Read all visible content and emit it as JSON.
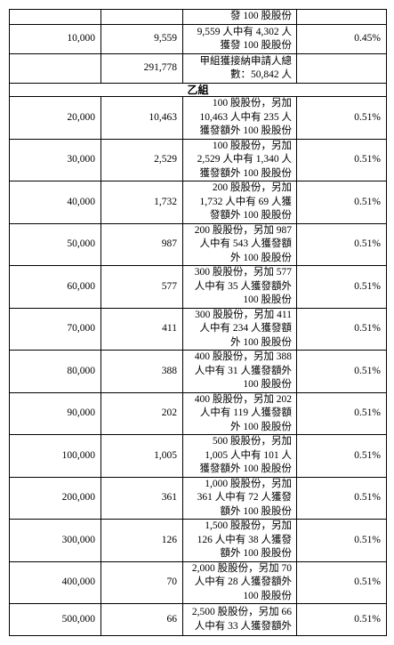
{
  "table": {
    "rows": [
      {
        "basis": [
          "發 100 股股份"
        ]
      },
      {
        "application": "10,000",
        "applicants": "9,559",
        "basis": [
          "9,559 人中有 4,302 人",
          "獲發 100 股股份"
        ],
        "percentage": "0.45%"
      },
      {
        "applicants": "291,778",
        "basis": [
          "甲組獲接納申請人總",
          "數：50,842 人"
        ]
      },
      {
        "group": "乙組"
      },
      {
        "application": "20,000",
        "applicants": "10,463",
        "basis": [
          "100 股股份，另加",
          "10,463 人中有 235 人",
          "獲發額外 100 股股份"
        ],
        "percentage": "0.51%"
      },
      {
        "application": "30,000",
        "applicants": "2,529",
        "basis": [
          "100 股股份，另加",
          "2,529 人中有 1,340 人",
          "獲發額外 100 股股份"
        ],
        "percentage": "0.51%"
      },
      {
        "application": "40,000",
        "applicants": "1,732",
        "basis": [
          "200 股股份，另加",
          "1,732 人中有 69 人獲",
          "發額外 100 股股份"
        ],
        "percentage": "0.51%"
      },
      {
        "application": "50,000",
        "applicants": "987",
        "basis": [
          "200 股股份，另加 987",
          "人中有 543 人獲發額",
          "外 100 股股份"
        ],
        "percentage": "0.51%"
      },
      {
        "application": "60,000",
        "applicants": "577",
        "basis": [
          "300 股股份，另加 577",
          "人中有 35 人獲發額外",
          "100 股股份"
        ],
        "percentage": "0.51%"
      },
      {
        "application": "70,000",
        "applicants": "411",
        "basis": [
          "300 股股份，另加 411",
          "人中有 234 人獲發額",
          "外 100 股股份"
        ],
        "percentage": "0.51%"
      },
      {
        "application": "80,000",
        "applicants": "388",
        "basis": [
          "400 股股份，另加 388",
          "人中有 31 人獲發額外",
          "100 股股份"
        ],
        "percentage": "0.51%"
      },
      {
        "application": "90,000",
        "applicants": "202",
        "basis": [
          "400 股股份，另加 202",
          "人中有 119 人獲發額",
          "外 100 股股份"
        ],
        "percentage": "0.51%"
      },
      {
        "application": "100,000",
        "applicants": "1,005",
        "basis": [
          "500 股股份，另加",
          "1,005 人中有 101 人",
          "獲發額外 100 股股份"
        ],
        "percentage": "0.51%"
      },
      {
        "application": "200,000",
        "applicants": "361",
        "basis": [
          "1,000 股股份，另加",
          "361 人中有 72 人獲發",
          "額外 100 股股份"
        ],
        "percentage": "0.51%"
      },
      {
        "application": "300,000",
        "applicants": "126",
        "basis": [
          "1,500 股股份，另加",
          "126 人中有 38 人獲發",
          "額外 100 股股份"
        ],
        "percentage": "0.51%"
      },
      {
        "application": "400,000",
        "applicants": "70",
        "basis": [
          "2,000 股股份，另加 70",
          "人中有 28 人獲發額外",
          "100 股股份"
        ],
        "percentage": "0.51%"
      },
      {
        "application": "500,000",
        "applicants": "66",
        "basis": [
          "2,500 股股份，另加 66",
          "人中有 33 人獲發額外"
        ],
        "percentage": "0.51%"
      }
    ]
  }
}
